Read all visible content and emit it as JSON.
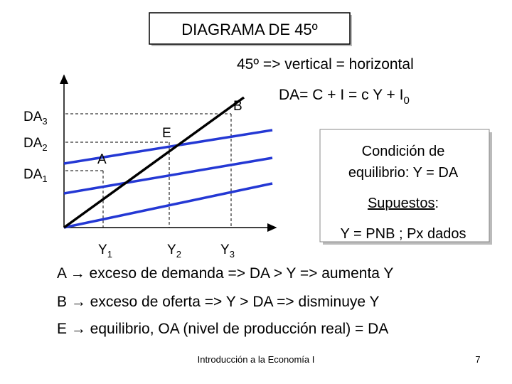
{
  "header": {
    "title": "DIAGRAMA DE 45º",
    "subtitle": "45º => vertical = horizontal"
  },
  "diagram": {
    "y_labels": [
      {
        "base": "DA",
        "sub": "3"
      },
      {
        "base": "DA",
        "sub": "2"
      },
      {
        "base": "DA",
        "sub": "1"
      }
    ],
    "x_labels": [
      {
        "base": "Y",
        "sub": "1"
      },
      {
        "base": "Y",
        "sub": "2"
      },
      {
        "base": "Y",
        "sub": "3"
      }
    ],
    "points": [
      "A",
      "E",
      "B"
    ],
    "equation": {
      "base": "DA= C + I = c Y + I",
      "sub": "0"
    }
  },
  "condition": {
    "lines": [
      "Condición de",
      "equilibrio: Y = DA"
    ],
    "assumptions_title": {
      "underlined": "Supuestos",
      "rest": ":"
    },
    "assumptions": "Y = PNB ; Px dados"
  },
  "explanations": [
    "A → exceso de demanda => DA > Y => aumenta Y",
    "B → exceso de oferta => Y > DA => disminuye Y",
    "E → equilibrio, OA (nivel de producción real) = DA"
  ],
  "footer": {
    "course": "Introducción a la Economía I",
    "page": "7"
  }
}
